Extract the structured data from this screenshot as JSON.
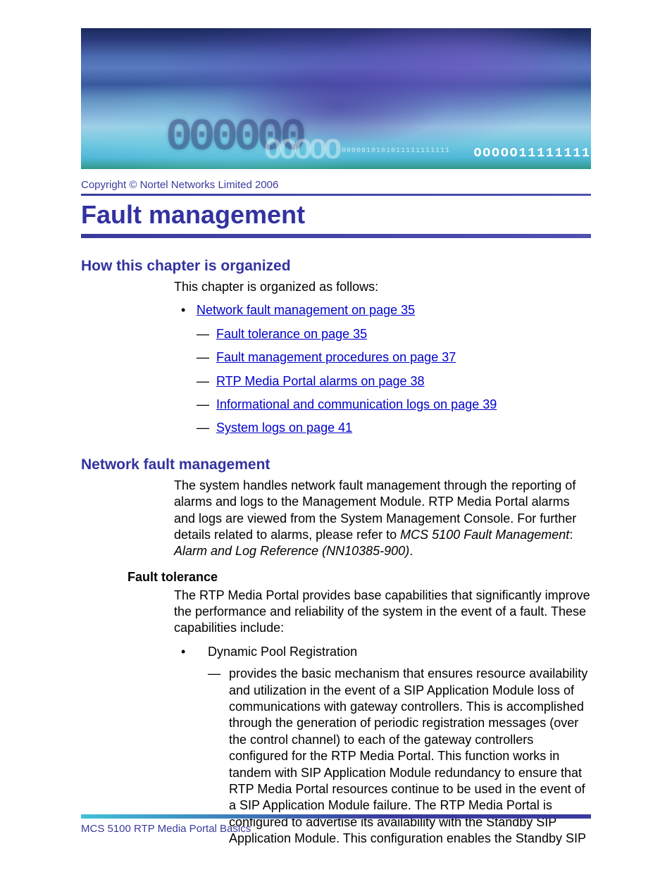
{
  "colors": {
    "heading_purple": "#3232a0",
    "rule_purple": "#3a3a9e",
    "link_blue": "#0000cc",
    "body_text": "#000000",
    "footer_gradient_start": "#40c0d8",
    "footer_gradient_end": "#3a3a9e",
    "background": "#ffffff"
  },
  "typography": {
    "chapter_title_size_pt": 27,
    "section_h2_size_pt": 16,
    "body_size_pt": 13.5,
    "copyright_size_pt": 11,
    "font_family": "Arial, Helvetica, sans-serif"
  },
  "banner": {
    "decorative_bits_large": "OOOOO11111111",
    "decorative_bits_small": "0000010101011111111111",
    "zeros_bg": "000000",
    "zeros_fg": "OOOOO"
  },
  "copyright": "Copyright © Nortel Networks Limited 2006",
  "chapter_title": "Fault management",
  "sections": {
    "organized": {
      "heading": "How this chapter is organized",
      "intro": "This chapter is organized as follows:",
      "toc": {
        "root_label": "Network fault management on page 35",
        "children": [
          "Fault tolerance on page 35",
          "Fault management procedures on page 37",
          "RTP Media Portal alarms on page 38",
          "Informational and communication logs on page 39",
          "System logs on page 41"
        ]
      }
    },
    "network_fault": {
      "heading": "Network fault management",
      "para_prefix": "The system handles network fault management through the reporting of alarms and logs to the Management Module. RTP Media Portal alarms and logs are viewed from the System Management Console. For further details related to alarms, please refer to ",
      "doc_ref_1": "MCS 5100 Fault Management",
      "doc_ref_sep": ": ",
      "doc_ref_2": "Alarm and Log Reference (NN10385-900)",
      "doc_ref_end": "."
    },
    "fault_tolerance": {
      "heading": "Fault tolerance",
      "para": "The RTP Media Portal provides base capabilities that significantly improve the performance and reliability of the system in the event of a fault. These capabilities include:",
      "capability_name": "Dynamic Pool Registration",
      "capability_desc": "provides the basic mechanism that ensures resource availability and utilization in the event of a SIP Application Module loss of communications with gateway controllers. This is accomplished through the generation of periodic registration messages (over the control channel) to each of the gateway controllers configured for the RTP Media Portal. This function works in tandem with SIP Application Module redundancy to ensure that RTP Media Portal resources continue to be used in the event of a SIP Application Module failure. The RTP Media Portal is configured to advertise its availability with the Standby SIP Application Module. This configuration enables the Standby SIP"
    }
  },
  "footer": "MCS 5100 RTP Media Portal Basics"
}
